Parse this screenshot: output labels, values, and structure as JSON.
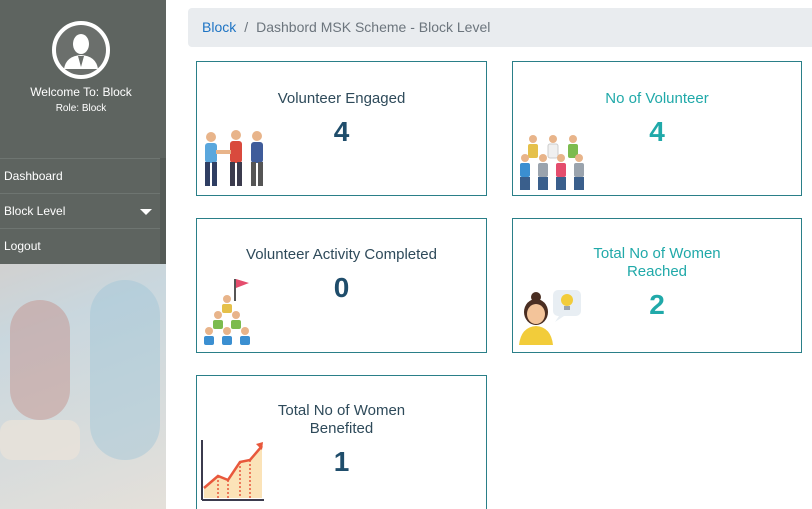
{
  "sidebar": {
    "welcome": "Welcome To: Block",
    "role": "Role: Block",
    "nav": {
      "dashboard": "Dashboard",
      "block_level": "Block Level",
      "logout": "Logout"
    }
  },
  "breadcrumb": {
    "root": "Block",
    "separator": "/",
    "current": "Dashbord MSK Scheme - Block Level"
  },
  "cards": {
    "volunteer_engaged": {
      "title": "Volunteer Engaged",
      "value": "4"
    },
    "no_of_volunteer": {
      "title": "No of Volunteer",
      "value": "4"
    },
    "activity_completed": {
      "title": "Volunteer Activity Completed",
      "value": "0"
    },
    "women_reached": {
      "title_line1": "Total No of Women",
      "title_line2": "Reached",
      "value": "2"
    },
    "women_benefited": {
      "title_line1": "Total No of Women",
      "title_line2": "Benefited",
      "value": "1"
    }
  },
  "colors": {
    "sidebar": "#5e6460",
    "card_border": "#2a7f88",
    "teal": "#20a9a9",
    "dark_value": "#1f4d6b",
    "link": "#1e74c4"
  }
}
